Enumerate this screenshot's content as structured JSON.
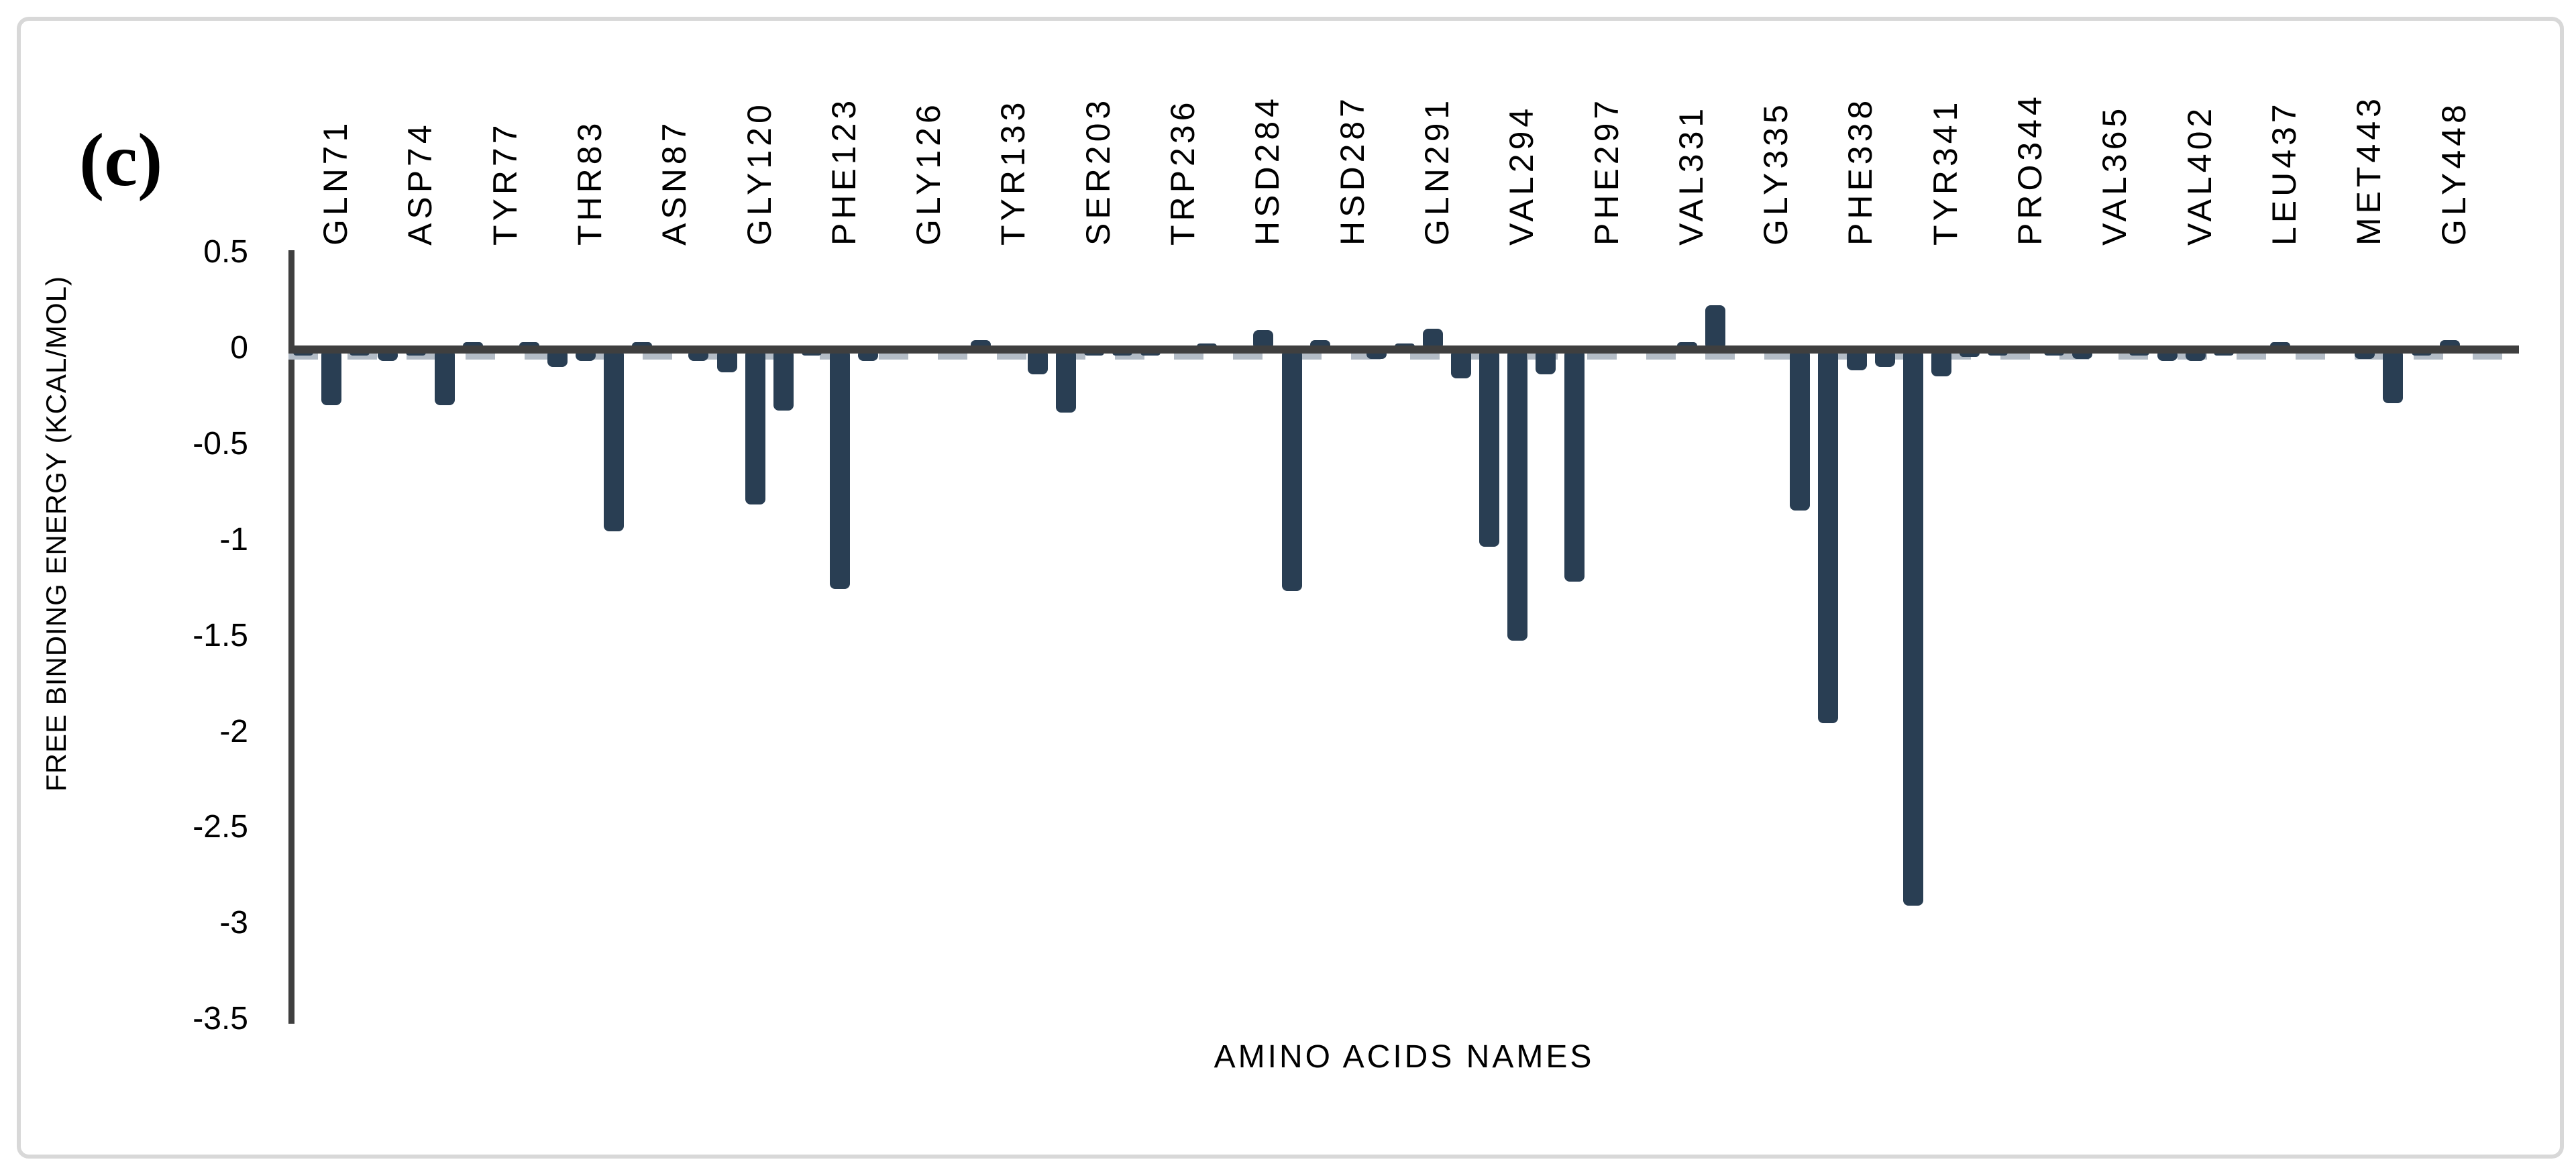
{
  "figure": {
    "panel_label": "(c)"
  },
  "chart_data": {
    "type": "bar",
    "title": "",
    "xlabel": "AMINO ACIDS NAMES",
    "ylabel": "FREE BINDING ENERGY (KCAL/MOL)",
    "ylim": [
      -3.5,
      0.5
    ],
    "ytick_labels": [
      "0.5",
      "0",
      "-0.5",
      "-1",
      "-1.5",
      "-2",
      "-2.5",
      "-3",
      "-3.5"
    ],
    "ytick_values": [
      0.5,
      0,
      -0.5,
      -1,
      -1.5,
      -2,
      -2.5,
      -3,
      -3.5
    ],
    "grid": false,
    "legend_position": "none",
    "bar_color": "#293e53",
    "axis_color": "#3f3f3f",
    "zero_dash_color": "#b3bcc6",
    "n_bars": 78,
    "label_every": 3,
    "categories": [
      "GLN71",
      "ASP74",
      "TYR77",
      "THR83",
      "ASN87",
      "GLY120",
      "PHE123",
      "GLY126",
      "TYR133",
      "SER203",
      "TRP236",
      "HSD284",
      "HSD287",
      "GLN291",
      "VAL294",
      "PHE297",
      "VAL331",
      "GLY335",
      "PHE338",
      "TYR341",
      "PRO344",
      "VAL365",
      "VAL402",
      "LEU437",
      "MET443",
      "GLY448"
    ],
    "values": [
      -0.03,
      -0.29,
      -0.03,
      -0.06,
      -0.03,
      -0.29,
      0.04,
      -0.02,
      0.04,
      -0.09,
      -0.06,
      -0.95,
      0.04,
      -0.02,
      -0.06,
      -0.12,
      -0.81,
      -0.32,
      -0.03,
      -1.25,
      -0.06,
      -0.02,
      -0.02,
      -0.02,
      0.05,
      -0.02,
      -0.13,
      -0.33,
      -0.03,
      -0.03,
      -0.03,
      -0.02,
      0.03,
      -0.02,
      0.1,
      -1.26,
      0.05,
      -0.02,
      -0.05,
      0.03,
      0.11,
      -0.15,
      -1.03,
      -1.52,
      -0.13,
      -1.21,
      -0.02,
      -0.02,
      -0.02,
      0.04,
      0.23,
      0.02,
      -0.02,
      -0.84,
      -1.95,
      -0.11,
      -0.09,
      -2.9,
      -0.14,
      -0.04,
      -0.03,
      -0.02,
      -0.03,
      -0.05,
      -0.02,
      -0.03,
      -0.06,
      -0.06,
      -0.03,
      -0.02,
      0.04,
      -0.02,
      -0.02,
      -0.05,
      -0.28,
      -0.03,
      0.05,
      -0.02
    ]
  }
}
